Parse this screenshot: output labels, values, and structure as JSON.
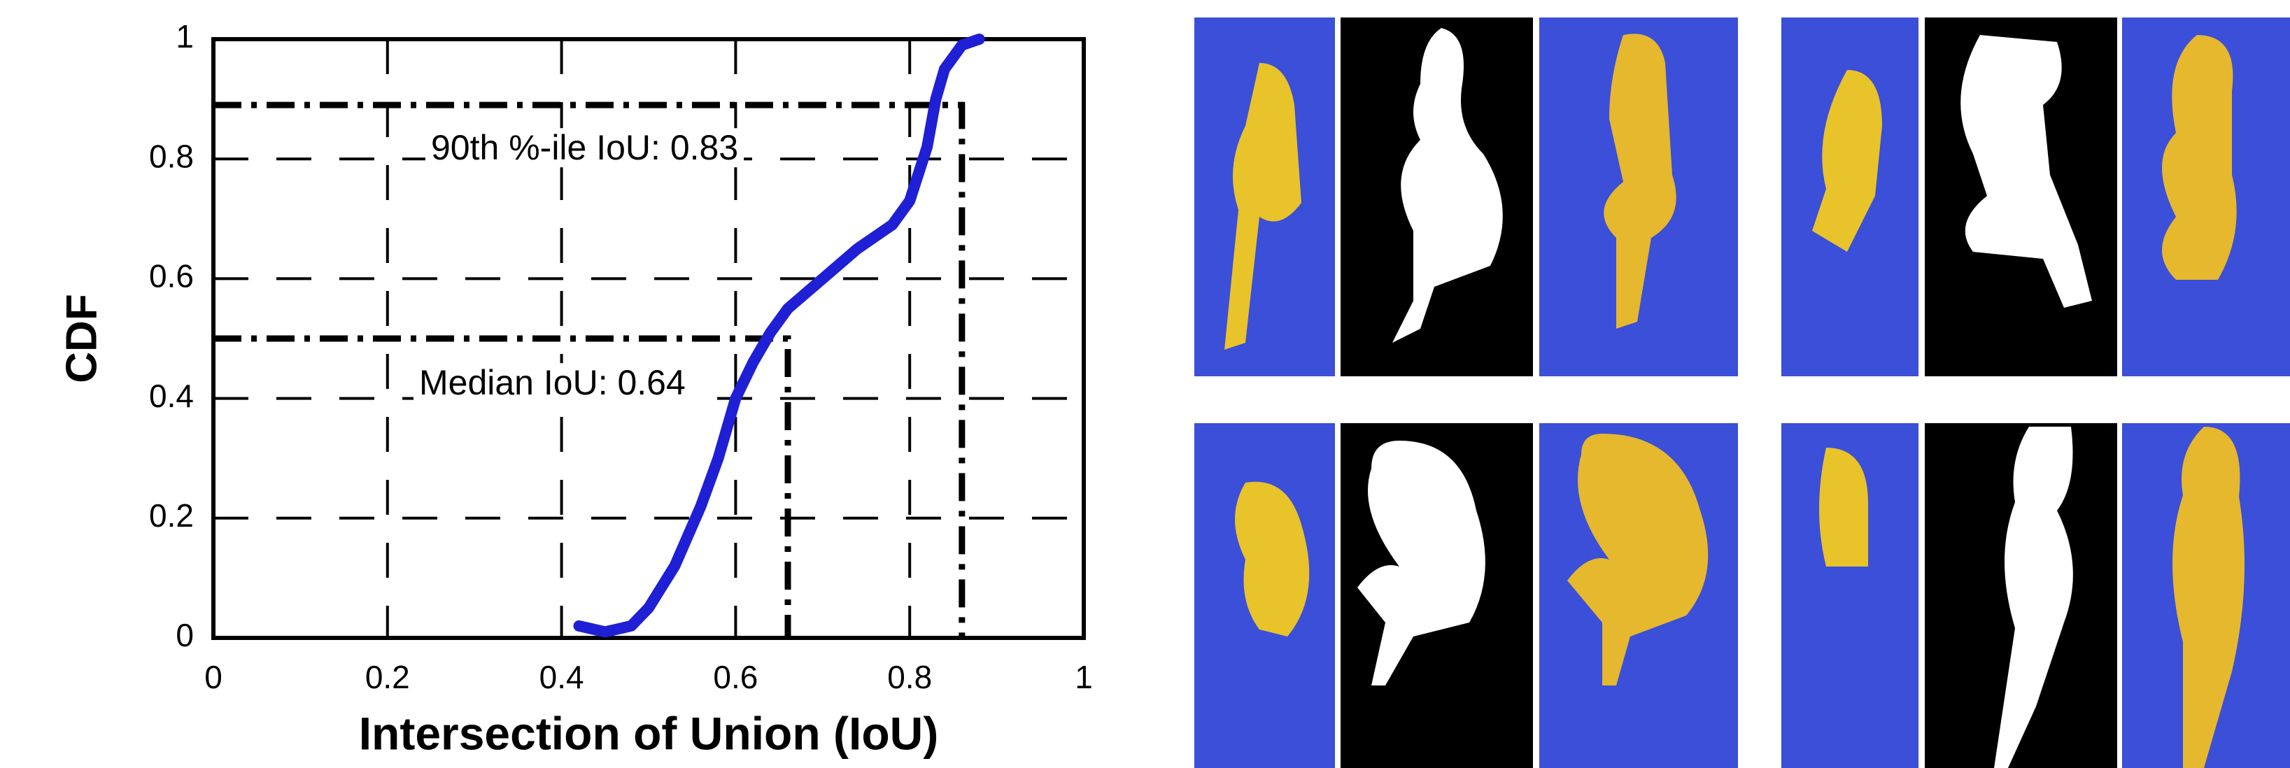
{
  "chart_data": {
    "type": "line",
    "x_label": "Intersection of Union (IoU)",
    "y_label": "CDF",
    "xlim": [
      0,
      1
    ],
    "ylim": [
      0,
      1
    ],
    "xticks": [
      0,
      0.2,
      0.4,
      0.6,
      0.8,
      1
    ],
    "yticks": [
      0,
      0.2,
      0.4,
      0.6,
      0.8,
      1
    ],
    "grid": true,
    "series": [
      {
        "color": "#1f1fd6",
        "x": [
          0.42,
          0.45,
          0.48,
          0.5,
          0.53,
          0.56,
          0.58,
          0.6,
          0.62,
          0.64,
          0.66,
          0.7,
          0.74,
          0.78,
          0.8,
          0.82,
          0.83,
          0.84,
          0.86,
          0.88
        ],
        "values": [
          0.02,
          0.01,
          0.02,
          0.05,
          0.12,
          0.22,
          0.3,
          0.4,
          0.46,
          0.51,
          0.55,
          0.6,
          0.65,
          0.69,
          0.73,
          0.82,
          0.9,
          0.95,
          0.99,
          1.0
        ]
      }
    ],
    "reference_lines": [
      {
        "x": 0.66,
        "y": 0.5
      },
      {
        "x": 0.86,
        "y": 0.89
      }
    ],
    "annotations": [
      "90th %-ile IoU: 0.83",
      "Median IoU: 0.64"
    ]
  }
}
